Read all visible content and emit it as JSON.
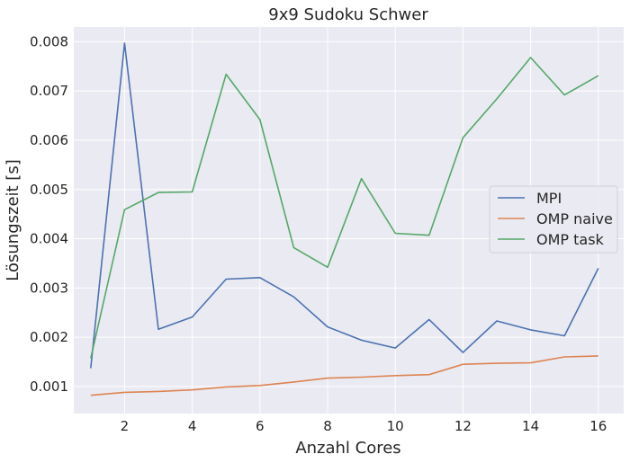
{
  "chart_data": {
    "type": "line",
    "title": "9x9 Sudoku Schwer",
    "xlabel": "Anzahl Cores",
    "ylabel": "Lösungszeit [s]",
    "xlim": [
      0.5,
      16.75
    ],
    "ylim": [
      0.00045,
      0.0083
    ],
    "xticks": [
      2,
      4,
      6,
      8,
      10,
      12,
      14,
      16
    ],
    "yticks": [
      0.001,
      0.002,
      0.003,
      0.004,
      0.005,
      0.006,
      0.007,
      0.008
    ],
    "grid": true,
    "legend_position": "center-right",
    "x": [
      1,
      2,
      3,
      4,
      5,
      6,
      7,
      8,
      9,
      10,
      11,
      12,
      13,
      14,
      15,
      16
    ],
    "series": [
      {
        "name": "MPI",
        "color": "#4c72b0",
        "values": [
          0.00137,
          0.00797,
          0.00216,
          0.00241,
          0.00318,
          0.00321,
          0.00282,
          0.00221,
          0.00194,
          0.00178,
          0.00236,
          0.00169,
          0.00233,
          0.00215,
          0.00203,
          0.0034
        ]
      },
      {
        "name": "OMP naive",
        "color": "#dd8452",
        "values": [
          0.00082,
          0.00088,
          0.0009,
          0.00093,
          0.00099,
          0.00102,
          0.00109,
          0.00117,
          0.00119,
          0.00122,
          0.00124,
          0.00145,
          0.00147,
          0.00148,
          0.0016,
          0.00162
        ]
      },
      {
        "name": "OMP task",
        "color": "#55a868",
        "values": [
          0.00157,
          0.00459,
          0.00494,
          0.00495,
          0.00734,
          0.00642,
          0.00382,
          0.00342,
          0.00522,
          0.00411,
          0.00407,
          0.00605,
          0.00684,
          0.00768,
          0.00692,
          0.00731
        ]
      }
    ]
  }
}
